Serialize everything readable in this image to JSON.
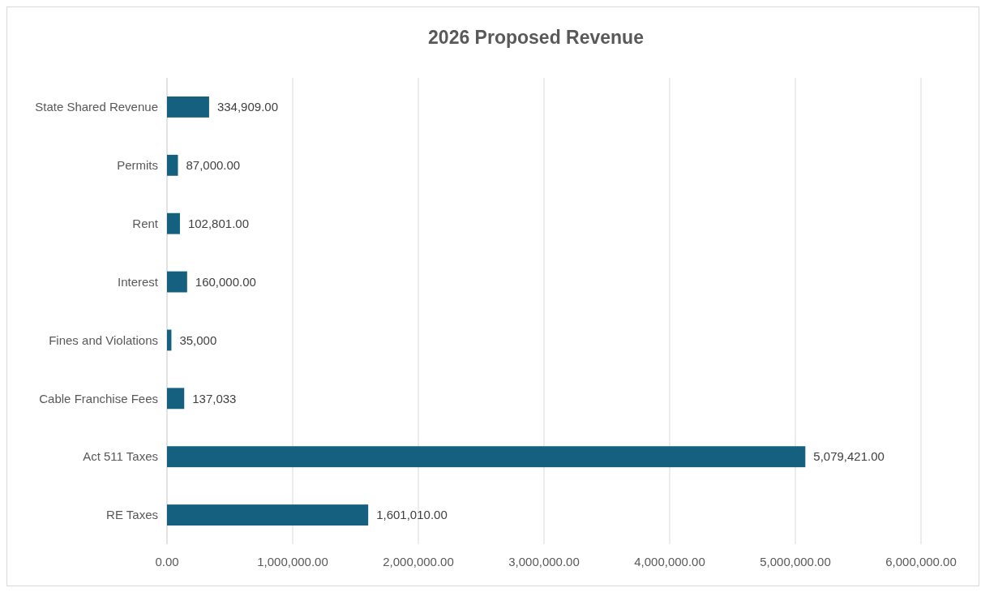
{
  "chart_data": {
    "type": "bar",
    "orientation": "horizontal",
    "title": "2026 Proposed Revenue",
    "categories": [
      "State Shared Revenue",
      "Permits",
      "Rent",
      "Interest",
      "Fines and Violations",
      "Cable Franchise Fees",
      "Act 511 Taxes",
      "RE Taxes"
    ],
    "values": [
      334909,
      87000,
      102801,
      160000,
      35000,
      137033,
      5079421,
      1601010
    ],
    "value_labels": [
      "334,909.00",
      "87,000.00",
      "102,801.00",
      "160,000.00",
      "35,000",
      "137,033",
      "5,079,421.00",
      "1,601,010.00"
    ],
    "color": "#155f7f",
    "xlim": [
      0,
      6000000
    ],
    "xticks": [
      {
        "value": 0,
        "label": "0.00"
      },
      {
        "value": 1000000,
        "label": "1,000,000.00"
      },
      {
        "value": 2000000,
        "label": "2,000,000.00"
      },
      {
        "value": 3000000,
        "label": "3,000,000.00"
      },
      {
        "value": 4000000,
        "label": "4,000,000.00"
      },
      {
        "value": 5000000,
        "label": "5,000,000.00"
      },
      {
        "value": 6000000,
        "label": "6,000,000.00"
      }
    ],
    "grid": "x"
  }
}
